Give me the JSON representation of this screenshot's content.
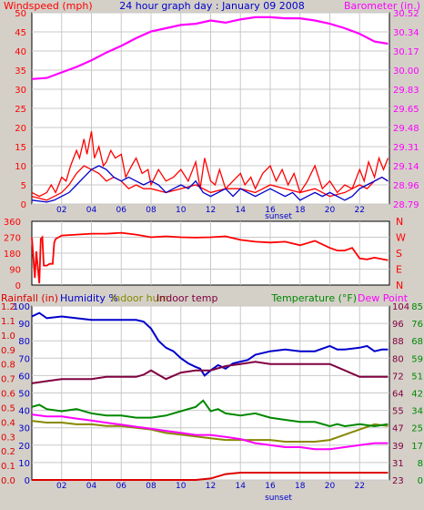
{
  "title": "24 hour graph day : January 09 2008",
  "colors": {
    "background": "#d4d0c8",
    "plot_bg": "#ffffff",
    "grid": "#c8c8c8",
    "wind": "#ff0000",
    "gust": "#ff0000",
    "avg_wind": "#0000cc",
    "barometer": "#ff00ff",
    "direction": "#ff0000",
    "rainfall": "#dd0000",
    "humidity": "#0000cc",
    "indoor_hum": "#888800",
    "indoor_temp": "#800040",
    "temperature": "#008800",
    "dew_point": "#ff00ff",
    "sunset_axis": "#0000cc"
  },
  "chart_data": [
    {
      "type": "line",
      "name": "wind-barometer",
      "ylabel": "Windspeed (mph)",
      "ylabel_right": "Barometer (in.)",
      "ylim": [
        0,
        50
      ],
      "yticks": [
        "0",
        "5",
        "10",
        "15",
        "20",
        "25",
        "30",
        "35",
        "40",
        "45",
        "50"
      ],
      "ylim_right": [
        28.79,
        30.52
      ],
      "yticks_right": [
        "28.79",
        "28.96",
        "29.14",
        "29.31",
        "29.48",
        "29.65",
        "29.83",
        "30.00",
        "30.17",
        "30.34",
        "30.52"
      ],
      "xticks": [
        "02",
        "04",
        "06",
        "08",
        "10",
        "12",
        "14",
        "16",
        "18",
        "20",
        "22"
      ],
      "xlabel": "sunset",
      "series": [
        {
          "key": "gust",
          "color": "#ff0000",
          "x": [
            0,
            0.5,
            1,
            1.3,
            1.6,
            2,
            2.3,
            2.6,
            3,
            3.2,
            3.5,
            3.7,
            4,
            4.2,
            4.5,
            4.8,
            5,
            5.3,
            5.6,
            6,
            6.3,
            6.7,
            7,
            7.4,
            7.8,
            8,
            8.5,
            9,
            9.5,
            10,
            10.5,
            11,
            11.3,
            11.6,
            12,
            12.3,
            12.6,
            13,
            13.5,
            14,
            14.3,
            14.7,
            15,
            15.5,
            16,
            16.4,
            16.8,
            17.2,
            17.6,
            18,
            18.5,
            19,
            19.5,
            20,
            20.5,
            21,
            21.5,
            22,
            22.3,
            22.6,
            23,
            23.3,
            23.6,
            23.9
          ],
          "y": [
            3,
            2,
            3,
            5,
            3,
            7,
            6,
            10,
            14,
            12,
            17,
            13,
            19,
            12,
            15,
            10,
            11,
            14,
            12,
            13,
            7,
            10,
            12,
            8,
            9,
            5,
            9,
            6,
            7,
            9,
            6,
            11,
            4,
            12,
            6,
            5,
            9,
            4,
            6,
            8,
            5,
            7,
            4,
            8,
            10,
            6,
            9,
            5,
            8,
            3,
            6,
            10,
            4,
            6,
            3,
            5,
            4,
            9,
            6,
            11,
            7,
            12,
            9,
            12
          ]
        },
        {
          "key": "wind",
          "color": "#ff0000",
          "x": [
            0,
            1,
            2,
            2.5,
            3,
            3.5,
            4,
            4.5,
            5,
            5.5,
            6,
            6.5,
            7,
            7.5,
            8,
            9,
            10,
            11,
            12,
            13,
            14,
            15,
            16,
            17,
            18,
            19,
            20,
            21,
            22,
            22.5,
            23,
            23.5,
            23.9
          ],
          "y": [
            2,
            1,
            3,
            5,
            8,
            10,
            9,
            8,
            6,
            7,
            6,
            4,
            5,
            4,
            4,
            3,
            4,
            5,
            3,
            4,
            4,
            3,
            5,
            4,
            3,
            4,
            2,
            3,
            5,
            4,
            6,
            7,
            6
          ]
        },
        {
          "key": "avg_wind",
          "color": "#0000cc",
          "x": [
            0,
            1,
            1.5,
            2,
            2.5,
            3,
            3.5,
            4,
            4.5,
            5,
            5.5,
            6,
            6.5,
            7,
            7.5,
            8,
            8.5,
            9,
            9.5,
            10,
            10.5,
            11,
            11.5,
            12,
            12.5,
            13,
            13.5,
            14,
            14.5,
            15,
            15.5,
            16,
            16.5,
            17,
            17.5,
            18,
            18.5,
            19,
            19.5,
            20,
            20.5,
            21,
            21.5,
            22,
            22.5,
            23,
            23.5,
            23.9
          ],
          "y": [
            1,
            0.5,
            1,
            2,
            3,
            5,
            7,
            9,
            10,
            9,
            7,
            6,
            7,
            6,
            5,
            6,
            5,
            3,
            4,
            5,
            4,
            6,
            3,
            2,
            3,
            4,
            2,
            4,
            3,
            2,
            3,
            4,
            3,
            2,
            3,
            1,
            2,
            3,
            2,
            3,
            2,
            1,
            2,
            4,
            5,
            6,
            7,
            6
          ]
        },
        {
          "key": "barometer",
          "color": "#ff00ff",
          "axis": "right",
          "x": [
            0,
            1,
            2,
            3,
            4,
            5,
            6,
            7,
            8,
            9,
            10,
            11,
            12,
            13,
            14,
            15,
            16,
            17,
            18,
            19,
            20,
            21,
            22,
            23,
            23.9
          ],
          "y": [
            29.92,
            29.93,
            29.98,
            30.03,
            30.09,
            30.16,
            30.22,
            30.29,
            30.35,
            30.38,
            30.41,
            30.42,
            30.45,
            30.43,
            30.46,
            30.48,
            30.48,
            30.47,
            30.47,
            30.45,
            30.42,
            30.38,
            30.33,
            30.26,
            30.24
          ]
        }
      ]
    },
    {
      "type": "line",
      "name": "wind-direction",
      "yticks": [
        "0",
        "90",
        "180",
        "270",
        "360"
      ],
      "ylim": [
        0,
        360
      ],
      "right_labels": [
        "N",
        "W",
        "S",
        "E",
        "N"
      ],
      "series": [
        {
          "key": "direction",
          "color": "#ff0000",
          "x": [
            0,
            0.2,
            0.3,
            0.5,
            0.6,
            0.7,
            0.8,
            1,
            1.2,
            1.4,
            1.5,
            1.6,
            1.8,
            2,
            3,
            4,
            5,
            6,
            7,
            8,
            9,
            10,
            11,
            12,
            13,
            14,
            15,
            16,
            17,
            18,
            19,
            20,
            20.5,
            21,
            21.5,
            22,
            22.5,
            23,
            23.9
          ],
          "y": [
            270,
            40,
            190,
            10,
            260,
            270,
            110,
            110,
            120,
            120,
            240,
            260,
            270,
            280,
            285,
            290,
            290,
            295,
            285,
            270,
            275,
            270,
            268,
            270,
            275,
            255,
            245,
            240,
            245,
            225,
            250,
            210,
            195,
            195,
            210,
            150,
            145,
            155,
            140
          ]
        }
      ]
    },
    {
      "type": "line",
      "name": "rain-humidity-temperature",
      "ylabel_left_rain": "Rainfall (in)",
      "ylim_rain": [
        0,
        1.2
      ],
      "yticks_rain": [
        "0.0",
        "0.1",
        "0.2",
        "0.3",
        "0.4",
        "0.5",
        "0.6",
        "0.7",
        "0.8",
        "0.9",
        "1.0",
        "1.1",
        "1.2"
      ],
      "ylabel_humidity": "Humidity %",
      "ylim_humidity": [
        0,
        100
      ],
      "yticks_humidity": [
        "0",
        "10",
        "20",
        "30",
        "40",
        "50",
        "60",
        "70",
        "80",
        "90",
        "100"
      ],
      "legend_indoor_hum": "Indoor hum",
      "legend_indoor_temp": "Indoor temp",
      "ylabel_temp": "Temperature (°F)",
      "ylim_temp": [
        23,
        104
      ],
      "yticks_temp": [
        "23",
        "31",
        "39",
        "47",
        "55",
        "64",
        "72",
        "80",
        "88",
        "96",
        "104"
      ],
      "ylabel_dew": "Dew Point",
      "ylim_dew": [
        0,
        85
      ],
      "yticks_dew": [
        "0",
        "8",
        "17",
        "25",
        "34",
        "42",
        "51",
        "59",
        "68",
        "76",
        "85"
      ],
      "xticks": [
        "02",
        "04",
        "06",
        "08",
        "10",
        "12",
        "14",
        "16",
        "18",
        "20",
        "22"
      ],
      "xlabel": "sunset",
      "series": [
        {
          "key": "rainfall",
          "color": "#dd0000",
          "axis": "rain",
          "x": [
            0,
            11,
            12,
            13,
            14,
            16,
            18,
            20,
            22,
            23.9
          ],
          "y": [
            0.0,
            0.0,
            0.01,
            0.04,
            0.05,
            0.05,
            0.05,
            0.05,
            0.05,
            0.05
          ]
        },
        {
          "key": "humidity",
          "color": "#0000cc",
          "axis": "humidity",
          "x": [
            0,
            0.5,
            1,
            2,
            3,
            4,
            5,
            6,
            7,
            7.5,
            8,
            8.5,
            9,
            9.5,
            10,
            10.5,
            11,
            11.3,
            11.6,
            12,
            12.5,
            13,
            13.5,
            14,
            14.5,
            15,
            16,
            17,
            18,
            19,
            20,
            20.5,
            21,
            22,
            22.5,
            23,
            23.5,
            23.9
          ],
          "y": [
            94,
            96,
            93,
            94,
            93,
            92,
            92,
            92,
            92,
            91,
            87,
            80,
            76,
            74,
            70,
            67,
            65,
            64,
            60,
            63,
            66,
            64,
            67,
            68,
            69,
            72,
            74,
            75,
            74,
            74,
            77,
            75,
            75,
            76,
            77,
            74,
            75,
            75
          ]
        },
        {
          "key": "indoor_temp",
          "color": "#800040",
          "axis": "temp",
          "x": [
            0,
            1,
            2,
            3,
            4,
            5,
            6,
            7,
            7.5,
            8,
            8.5,
            9,
            10,
            11,
            12,
            13,
            14,
            15,
            16,
            17,
            18,
            19,
            20,
            21,
            22,
            23,
            23.9
          ],
          "y": [
            68,
            69,
            70,
            70,
            70,
            71,
            71,
            71,
            72,
            74,
            72,
            70,
            73,
            74,
            74,
            76,
            77,
            78,
            77,
            77,
            77,
            77,
            77,
            74,
            71,
            71,
            71
          ]
        },
        {
          "key": "indoor_hum",
          "color": "#888800",
          "axis": "humidity",
          "x": [
            0,
            1,
            2,
            3,
            4,
            5,
            6,
            7,
            8,
            9,
            10,
            11,
            12,
            13,
            14,
            15,
            16,
            17,
            18,
            19,
            20,
            21,
            22,
            23,
            23.9
          ],
          "y": [
            34,
            33,
            33,
            32,
            32,
            31,
            31,
            30,
            29,
            27,
            26,
            25,
            24,
            23,
            23,
            23,
            23,
            22,
            22,
            22,
            23,
            26,
            29,
            32,
            31
          ]
        },
        {
          "key": "temperature",
          "color": "#008800",
          "axis": "temp",
          "x": [
            0,
            0.5,
            1,
            2,
            3,
            4,
            5,
            6,
            7,
            8,
            9,
            10,
            11,
            11.5,
            12,
            12.5,
            13,
            14,
            15,
            16,
            17,
            18,
            19,
            20,
            20.5,
            21,
            22,
            23,
            23.9
          ],
          "y": [
            57,
            58,
            56,
            55,
            56,
            54,
            53,
            53,
            52,
            52,
            53,
            55,
            57,
            60,
            55,
            56,
            54,
            53,
            54,
            52,
            51,
            50,
            50,
            48,
            49,
            48,
            49,
            48,
            49
          ]
        },
        {
          "key": "dew_point",
          "color": "#ff00ff",
          "axis": "dew",
          "x": [
            0,
            1,
            2,
            3,
            4,
            5,
            6,
            7,
            8,
            9,
            10,
            11,
            12,
            13,
            14,
            15,
            16,
            17,
            18,
            19,
            20,
            21,
            22,
            23,
            23.9
          ],
          "y": [
            32,
            31,
            31,
            30,
            29,
            28,
            27,
            26,
            25,
            24,
            23,
            22,
            22,
            21,
            20,
            18,
            17,
            16,
            16,
            15,
            15,
            16,
            17,
            18,
            18
          ]
        }
      ]
    }
  ]
}
